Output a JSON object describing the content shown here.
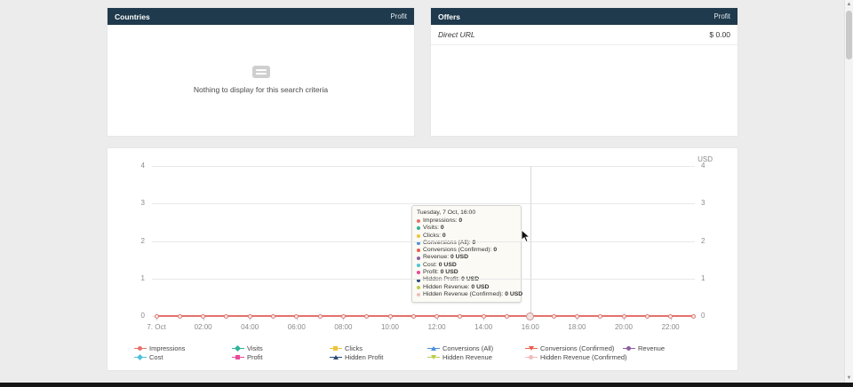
{
  "panels": {
    "countries": {
      "title": "Countries",
      "header_right": "Profit",
      "empty_text": "Nothing to display for this search criteria"
    },
    "offers": {
      "title": "Offers",
      "header_right": "Profit",
      "rows": [
        {
          "name": "Direct URL",
          "value": "$ 0.00"
        }
      ]
    }
  },
  "chart": {
    "unit_label": "USD",
    "y_ticks": [
      "4",
      "3",
      "2",
      "1",
      "0"
    ],
    "x_ticks": [
      "7. Oct",
      "02:00",
      "04:00",
      "06:00",
      "08:00",
      "10:00",
      "12:00",
      "14:00",
      "16:00",
      "18:00",
      "20:00",
      "22:00"
    ],
    "tooltip": {
      "title": "Tuesday, 7 Oct, 16:00",
      "items": [
        {
          "label": "Impressions",
          "value": "0",
          "color": "#e4716c"
        },
        {
          "label": "Visits",
          "value": "0",
          "color": "#2eb398"
        },
        {
          "label": "Clicks",
          "value": "0",
          "color": "#f0c33c"
        },
        {
          "label": "Conversions (All)",
          "value": "0",
          "color": "#4a90d9"
        },
        {
          "label": "Conversions (Confirmed)",
          "value": "0",
          "color": "#e8604c"
        },
        {
          "label": "Revenue",
          "value": "0 USD",
          "color": "#8e5ea2"
        },
        {
          "label": "Cost",
          "value": "0 USD",
          "color": "#4fc3d9"
        },
        {
          "label": "Profit",
          "value": "0 USD",
          "color": "#e84a9b"
        },
        {
          "label": "Hidden Profit",
          "value": "0 USD",
          "color": "#2b4c77"
        },
        {
          "label": "Hidden Revenue",
          "value": "0 USD",
          "color": "#bfcc4a"
        },
        {
          "label": "Hidden Revenue (Confirmed)",
          "value": "0 USD",
          "color": "#f2bcbc"
        }
      ]
    },
    "legend_rows": [
      [
        {
          "label": "Impressions",
          "color": "#e4716c",
          "shape": "circle"
        },
        {
          "label": "Visits",
          "color": "#2eb398",
          "shape": "diamond"
        },
        {
          "label": "Clicks",
          "color": "#f0c33c",
          "shape": "square"
        },
        {
          "label": "Conversions (All)",
          "color": "#4a90d9",
          "shape": "triangle"
        },
        {
          "label": "Conversions (Confirmed)",
          "color": "#e8604c",
          "shape": "triangle-down"
        },
        {
          "label": "Revenue",
          "color": "#8e5ea2",
          "shape": "circle"
        }
      ],
      [
        {
          "label": "Cost",
          "color": "#4fc3d9",
          "shape": "diamond"
        },
        {
          "label": "Profit",
          "color": "#e84a9b",
          "shape": "square"
        },
        {
          "label": "Hidden Profit",
          "color": "#2b4c77",
          "shape": "triangle"
        },
        {
          "label": "Hidden Revenue",
          "color": "#bfcc4a",
          "shape": "triangle-down"
        },
        {
          "label": "Hidden Revenue (Confirmed)",
          "color": "#f2bcbc",
          "shape": "circle"
        }
      ]
    ]
  },
  "chart_data": {
    "type": "line",
    "title": "",
    "x_date": "7. Oct",
    "x": [
      "00:00",
      "01:00",
      "02:00",
      "03:00",
      "04:00",
      "05:00",
      "06:00",
      "07:00",
      "08:00",
      "09:00",
      "10:00",
      "11:00",
      "12:00",
      "13:00",
      "14:00",
      "15:00",
      "16:00",
      "17:00",
      "18:00",
      "19:00",
      "20:00",
      "21:00",
      "22:00",
      "23:00"
    ],
    "ylim": [
      0,
      4
    ],
    "y_unit": "USD",
    "grid": true,
    "legend_position": "bottom",
    "hover_point": {
      "x": "16:00",
      "label": "Tuesday, 7 Oct, 16:00"
    },
    "series": [
      {
        "name": "Impressions",
        "color": "#e4716c",
        "values": [
          0,
          0,
          0,
          0,
          0,
          0,
          0,
          0,
          0,
          0,
          0,
          0,
          0,
          0,
          0,
          0,
          0,
          0,
          0,
          0,
          0,
          0,
          0,
          0
        ]
      },
      {
        "name": "Visits",
        "color": "#2eb398",
        "values": [
          0,
          0,
          0,
          0,
          0,
          0,
          0,
          0,
          0,
          0,
          0,
          0,
          0,
          0,
          0,
          0,
          0,
          0,
          0,
          0,
          0,
          0,
          0,
          0
        ]
      },
      {
        "name": "Clicks",
        "color": "#f0c33c",
        "values": [
          0,
          0,
          0,
          0,
          0,
          0,
          0,
          0,
          0,
          0,
          0,
          0,
          0,
          0,
          0,
          0,
          0,
          0,
          0,
          0,
          0,
          0,
          0,
          0
        ]
      },
      {
        "name": "Conversions (All)",
        "color": "#4a90d9",
        "values": [
          0,
          0,
          0,
          0,
          0,
          0,
          0,
          0,
          0,
          0,
          0,
          0,
          0,
          0,
          0,
          0,
          0,
          0,
          0,
          0,
          0,
          0,
          0,
          0
        ]
      },
      {
        "name": "Conversions (Confirmed)",
        "color": "#e8604c",
        "values": [
          0,
          0,
          0,
          0,
          0,
          0,
          0,
          0,
          0,
          0,
          0,
          0,
          0,
          0,
          0,
          0,
          0,
          0,
          0,
          0,
          0,
          0,
          0,
          0
        ]
      },
      {
        "name": "Revenue",
        "color": "#8e5ea2",
        "values": [
          0,
          0,
          0,
          0,
          0,
          0,
          0,
          0,
          0,
          0,
          0,
          0,
          0,
          0,
          0,
          0,
          0,
          0,
          0,
          0,
          0,
          0,
          0,
          0
        ]
      },
      {
        "name": "Cost",
        "color": "#4fc3d9",
        "values": [
          0,
          0,
          0,
          0,
          0,
          0,
          0,
          0,
          0,
          0,
          0,
          0,
          0,
          0,
          0,
          0,
          0,
          0,
          0,
          0,
          0,
          0,
          0,
          0
        ]
      },
      {
        "name": "Profit",
        "color": "#e84a9b",
        "values": [
          0,
          0,
          0,
          0,
          0,
          0,
          0,
          0,
          0,
          0,
          0,
          0,
          0,
          0,
          0,
          0,
          0,
          0,
          0,
          0,
          0,
          0,
          0,
          0
        ]
      },
      {
        "name": "Hidden Profit",
        "color": "#2b4c77",
        "values": [
          0,
          0,
          0,
          0,
          0,
          0,
          0,
          0,
          0,
          0,
          0,
          0,
          0,
          0,
          0,
          0,
          0,
          0,
          0,
          0,
          0,
          0,
          0,
          0
        ]
      },
      {
        "name": "Hidden Revenue",
        "color": "#bfcc4a",
        "values": [
          0,
          0,
          0,
          0,
          0,
          0,
          0,
          0,
          0,
          0,
          0,
          0,
          0,
          0,
          0,
          0,
          0,
          0,
          0,
          0,
          0,
          0,
          0,
          0
        ]
      },
      {
        "name": "Hidden Revenue (Confirmed)",
        "color": "#f2bcbc",
        "values": [
          0,
          0,
          0,
          0,
          0,
          0,
          0,
          0,
          0,
          0,
          0,
          0,
          0,
          0,
          0,
          0,
          0,
          0,
          0,
          0,
          0,
          0,
          0,
          0
        ]
      }
    ]
  }
}
